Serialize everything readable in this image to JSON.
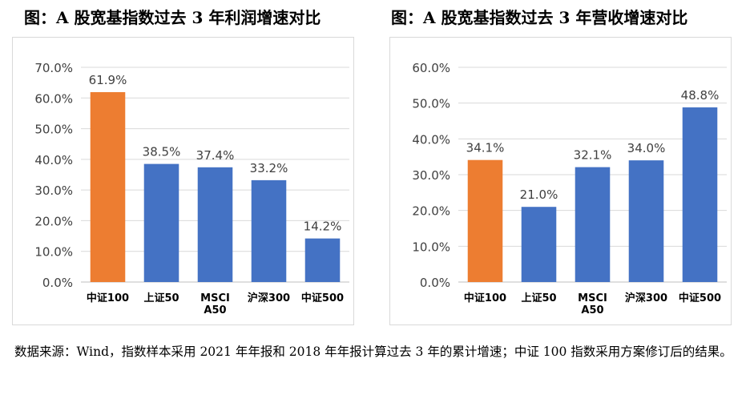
{
  "titles": {
    "left": "图：A 股宽基指数过去 3 年利润增速对比",
    "right": "图：A 股宽基指数过去 3 年营收增速对比"
  },
  "note": "数据来源：Wind，指数样本采用 2021 年年报和 2018 年年报计算过去 3 年的累计增速；中证 100 指数采用方案修订后的结果。",
  "colors": {
    "highlight": "#ED7D31",
    "bar": "#4472C4",
    "grid": "#d9d9d9",
    "axis": "#bfbfbf"
  },
  "chart_data": [
    {
      "type": "bar",
      "title": "图：A 股宽基指数过去 3 年利润增速对比",
      "categories": [
        "中证100",
        "上证50",
        "MSCI A50",
        "沪深300",
        "中证500"
      ],
      "values": [
        61.9,
        38.5,
        37.4,
        33.2,
        14.2
      ],
      "value_labels": [
        "61.9%",
        "38.5%",
        "37.4%",
        "33.2%",
        "14.2%"
      ],
      "ylim": [
        0,
        70
      ],
      "yticks": [
        "0.0%",
        "10.0%",
        "20.0%",
        "30.0%",
        "40.0%",
        "50.0%",
        "60.0%",
        "70.0%"
      ],
      "highlight_index": 0,
      "grid": true
    },
    {
      "type": "bar",
      "title": "图：A 股宽基指数过去 3 年营收增速对比",
      "categories": [
        "中证100",
        "上证50",
        "MSCI A50",
        "沪深300",
        "中证500"
      ],
      "values": [
        34.1,
        21.0,
        32.1,
        34.0,
        48.8
      ],
      "value_labels": [
        "34.1%",
        "21.0%",
        "32.1%",
        "34.0%",
        "48.8%"
      ],
      "ylim": [
        0,
        60
      ],
      "yticks": [
        "0.0%",
        "10.0%",
        "20.0%",
        "30.0%",
        "40.0%",
        "50.0%",
        "60.0%"
      ],
      "highlight_index": 0,
      "grid": true
    }
  ]
}
